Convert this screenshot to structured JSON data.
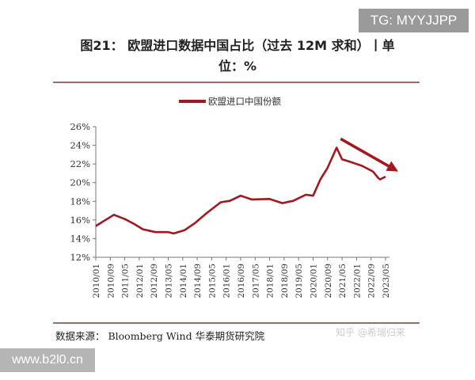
{
  "chart_data": {
    "type": "line",
    "title_line1": "图21：  欧盟进口数据中国占比（过去 12M 求和）丨单",
    "title_line2": "位：%",
    "legend": "欧盟进口中国份额",
    "legend_placement": "top-center",
    "series": [
      {
        "name": "欧盟进口中国份额",
        "color": "#a3171d",
        "x": [
          "2010/01",
          "2010/11",
          "2011/05",
          "2011/10",
          "2012/03",
          "2012/10",
          "2013/05",
          "2013/08",
          "2014/02",
          "2014/08",
          "2015/02",
          "2015/10",
          "2016/03",
          "2016/09",
          "2017/03",
          "2018/01",
          "2018/08",
          "2019/02",
          "2019/09",
          "2020/01",
          "2020/05",
          "2020/09",
          "2021/02",
          "2021/05",
          "2021/10",
          "2022/04",
          "2022/10",
          "2023/01",
          "2023/02",
          "2023/05"
        ],
        "y": [
          15.35,
          16.56,
          16.1,
          15.6,
          15.0,
          14.7,
          14.7,
          14.55,
          14.9,
          15.7,
          16.7,
          17.9,
          18.05,
          18.6,
          18.2,
          18.25,
          17.8,
          18.05,
          18.7,
          18.6,
          20.35,
          21.6,
          23.75,
          22.5,
          22.2,
          21.8,
          21.2,
          20.5,
          20.35,
          20.65
        ]
      }
    ],
    "x_ticks": [
      "2010/01",
      "2010/09",
      "2011/05",
      "2012/01",
      "2012/09",
      "2013/05",
      "2014/01",
      "2014/09",
      "2015/05",
      "2016/01",
      "2016/09",
      "2017/05",
      "2018/01",
      "2018/09",
      "2019/05",
      "2020/01",
      "2020/09",
      "2021/05",
      "2022/01",
      "2022/09",
      "2023/05"
    ],
    "y_ticks": [
      "12%",
      "14%",
      "16%",
      "18%",
      "20%",
      "22%",
      "24%",
      "26%"
    ],
    "ylim": [
      12,
      26
    ],
    "y_unit": "%",
    "grid": false,
    "annotation": "downward trend arrow from 2021 peak",
    "source": "数据来源：  Bloomberg Wind 华泰期货研究院"
  },
  "watermarks": {
    "tg": "TG: MYYJJPP",
    "zhihu": "知乎 @希瑞归来",
    "site": "www.b2l0.cn"
  }
}
